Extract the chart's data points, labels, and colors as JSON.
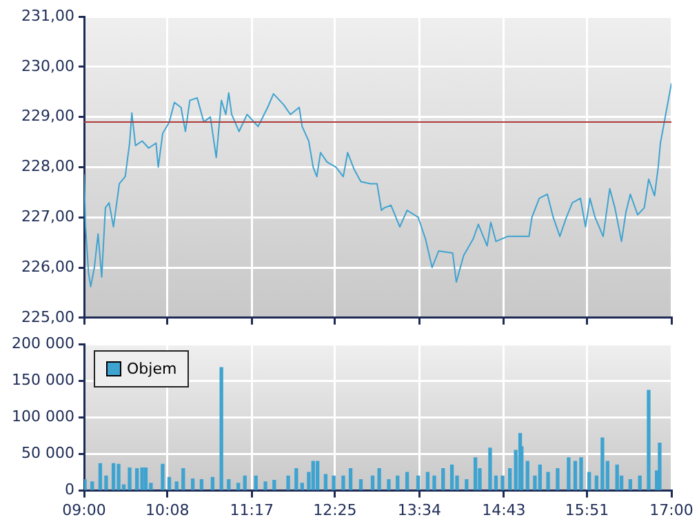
{
  "chart_data": [
    {
      "type": "line",
      "xlim": [
        9,
        17
      ],
      "xticks": [
        {
          "value": 9,
          "label": null
        },
        {
          "value": 10.1333,
          "label": null
        },
        {
          "value": 11.2833,
          "label": null
        },
        {
          "value": 12.4167,
          "label": null
        },
        {
          "value": 13.5667,
          "label": null
        },
        {
          "value": 14.7167,
          "label": null
        },
        {
          "value": 15.85,
          "label": null
        },
        {
          "value": 17,
          "label": null
        }
      ],
      "ylim": [
        225,
        231
      ],
      "yticks": [
        {
          "value": 225,
          "label": "225,00"
        },
        {
          "value": 226,
          "label": "226,00"
        },
        {
          "value": 227,
          "label": "227,00"
        },
        {
          "value": 228,
          "label": "228,00"
        },
        {
          "value": 229,
          "label": "229,00"
        },
        {
          "value": 230,
          "label": "230,00"
        },
        {
          "value": 231,
          "label": "231,00"
        }
      ],
      "tick_labels": "y",
      "grid": true,
      "ref_lines": [
        {
          "axis": "y",
          "value": 228.9,
          "color": "#b03a3a"
        }
      ],
      "series": [
        {
          "color": "#3fa3d0",
          "x": [
            9.0,
            9.02,
            9.06,
            9.09,
            9.14,
            9.19,
            9.24,
            9.29,
            9.34,
            9.4,
            9.48,
            9.56,
            9.62,
            9.65,
            9.7,
            9.79,
            9.88,
            9.98,
            10.01,
            10.07,
            10.16,
            10.23,
            10.32,
            10.38,
            10.44,
            10.54,
            10.63,
            10.72,
            10.8,
            10.87,
            10.93,
            10.97,
            11.01,
            11.11,
            11.22,
            11.37,
            11.5,
            11.58,
            11.72,
            11.81,
            11.93,
            11.97,
            12.06,
            12.12,
            12.17,
            12.22,
            12.31,
            12.43,
            12.53,
            12.59,
            12.68,
            12.77,
            12.9,
            12.99,
            13.05,
            13.09,
            13.18,
            13.3,
            13.4,
            13.55,
            13.65,
            13.74,
            13.83,
            14.02,
            14.07,
            14.17,
            14.3,
            14.37,
            14.49,
            14.54,
            14.61,
            14.77,
            14.95,
            15.06,
            15.1,
            15.2,
            15.31,
            15.39,
            15.48,
            15.57,
            15.65,
            15.76,
            15.83,
            15.89,
            15.96,
            16.07,
            16.16,
            16.23,
            16.32,
            16.38,
            16.44,
            16.54,
            16.63,
            16.69,
            16.77,
            16.82,
            16.85,
            17.0
          ],
          "values": [
            227.86,
            226.81,
            225.9,
            225.62,
            226.0,
            226.67,
            225.81,
            227.19,
            227.29,
            226.81,
            227.67,
            227.81,
            228.48,
            229.08,
            228.43,
            228.52,
            228.38,
            228.48,
            228.0,
            228.67,
            228.9,
            229.29,
            229.19,
            228.71,
            229.33,
            229.38,
            228.9,
            229.0,
            228.19,
            229.33,
            229.05,
            229.48,
            229.05,
            228.71,
            229.05,
            228.81,
            229.19,
            229.46,
            229.24,
            229.05,
            229.19,
            228.81,
            228.52,
            228.0,
            227.81,
            228.29,
            228.1,
            228.0,
            227.81,
            228.29,
            227.95,
            227.71,
            227.67,
            227.67,
            227.14,
            227.19,
            227.24,
            226.81,
            227.14,
            227.0,
            226.57,
            226.0,
            226.33,
            226.29,
            225.71,
            226.24,
            226.57,
            226.86,
            226.43,
            226.9,
            226.52,
            226.62,
            226.62,
            226.62,
            227.0,
            227.38,
            227.46,
            227.0,
            226.62,
            227.0,
            227.29,
            227.38,
            226.81,
            227.38,
            227.0,
            226.62,
            227.57,
            227.19,
            226.52,
            227.1,
            227.46,
            227.05,
            227.19,
            227.76,
            227.43,
            228.0,
            228.48,
            229.67
          ]
        }
      ]
    },
    {
      "type": "bar",
      "xlim": [
        9,
        17
      ],
      "xticks": [
        {
          "value": 9,
          "label": "09:00"
        },
        {
          "value": 10.1333,
          "label": "10:08"
        },
        {
          "value": 11.2833,
          "label": "11:17"
        },
        {
          "value": 12.4167,
          "label": "12:25"
        },
        {
          "value": 13.5667,
          "label": "13:34"
        },
        {
          "value": 14.7167,
          "label": "14:43"
        },
        {
          "value": 15.85,
          "label": "15:51"
        },
        {
          "value": 17,
          "label": "17:00"
        }
      ],
      "ylim": [
        0,
        200000
      ],
      "yticks": [
        0,
        {
          "value": 50000,
          "label": "50 000"
        },
        {
          "value": 100000,
          "label": "100 000"
        },
        {
          "value": 150000,
          "label": "150 000"
        },
        {
          "value": 200000,
          "label": "200 000"
        }
      ],
      "grid": true,
      "legend": "top left",
      "series": [
        {
          "name": "Objem",
          "color": "#3fa3d0",
          "x": [
            9.01,
            9.11,
            9.22,
            9.3,
            9.4,
            9.47,
            9.54,
            9.62,
            9.72,
            9.79,
            9.84,
            9.91,
            10.07,
            10.16,
            10.26,
            10.35,
            10.48,
            10.6,
            10.75,
            10.87,
            10.97,
            11.1,
            11.19,
            11.34,
            11.47,
            11.59,
            11.78,
            11.89,
            11.97,
            12.06,
            12.12,
            12.18,
            12.29,
            12.4,
            12.53,
            12.63,
            12.77,
            12.93,
            13.02,
            13.15,
            13.27,
            13.4,
            13.55,
            13.68,
            13.77,
            13.89,
            14.01,
            14.08,
            14.21,
            14.33,
            14.39,
            14.53,
            14.61,
            14.7,
            14.8,
            14.88,
            14.94,
            14.96,
            15.04,
            15.14,
            15.21,
            15.32,
            15.45,
            15.6,
            15.69,
            15.77,
            15.88,
            15.98,
            16.06,
            16.13,
            16.26,
            16.32,
            16.44,
            16.57,
            16.69,
            16.8,
            16.84
          ],
          "values": [
            15000,
            12000,
            37000,
            20000,
            37000,
            36000,
            8000,
            31000,
            30000,
            31000,
            31000,
            10000,
            36000,
            18000,
            12000,
            30000,
            16000,
            15000,
            18000,
            168000,
            15000,
            10000,
            20000,
            20000,
            12000,
            14000,
            20000,
            30000,
            10000,
            25000,
            40000,
            40000,
            22000,
            20000,
            20000,
            30000,
            15000,
            20000,
            30000,
            15000,
            20000,
            25000,
            20000,
            25000,
            20000,
            30000,
            35000,
            20000,
            15000,
            45000,
            30000,
            58000,
            20000,
            20000,
            30000,
            55000,
            78000,
            60000,
            40000,
            20000,
            35000,
            25000,
            30000,
            45000,
            40000,
            45000,
            25000,
            20000,
            72000,
            40000,
            35000,
            20000,
            15000,
            20000,
            137000,
            27000,
            65000
          ]
        }
      ]
    }
  ]
}
